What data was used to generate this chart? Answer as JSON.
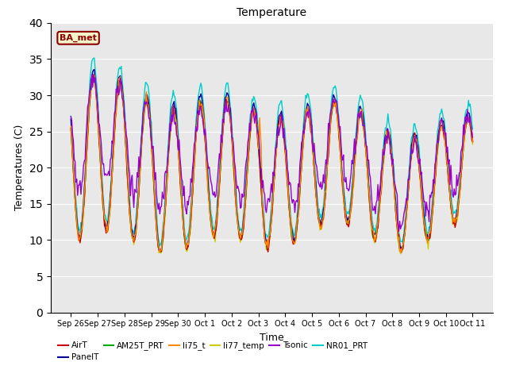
{
  "title": "Temperature",
  "xlabel": "Time",
  "ylabel": "Temperatures (C)",
  "ylim": [
    0,
    40
  ],
  "yticks": [
    0,
    5,
    10,
    15,
    20,
    25,
    30,
    35,
    40
  ],
  "bg_color": "#e8e8e8",
  "fig_color": "#ffffff",
  "annotation_text": "BA_met",
  "annotation_color": "#8B0000",
  "annotation_bg": "#f5f5c8",
  "series_colors": {
    "AirT": "#cc0000",
    "PanelT": "#000099",
    "AM25T_PRT": "#00aa00",
    "li75_t": "#ff8800",
    "li77_temp": "#cccc00",
    "Tsonic": "#9900cc",
    "NR01_PRT": "#00cccc"
  },
  "date_labels": [
    "Sep 26",
    "Sep 27",
    "Sep 28",
    "Sep 29",
    "Sep 30",
    "Oct 1",
    "Oct 2",
    "Oct 3",
    "Oct 4",
    "Oct 5",
    "Oct 6",
    "Oct 7",
    "Oct 8",
    "Oct 9",
    "Oct 10",
    "Oct 11"
  ],
  "n_points": 480
}
